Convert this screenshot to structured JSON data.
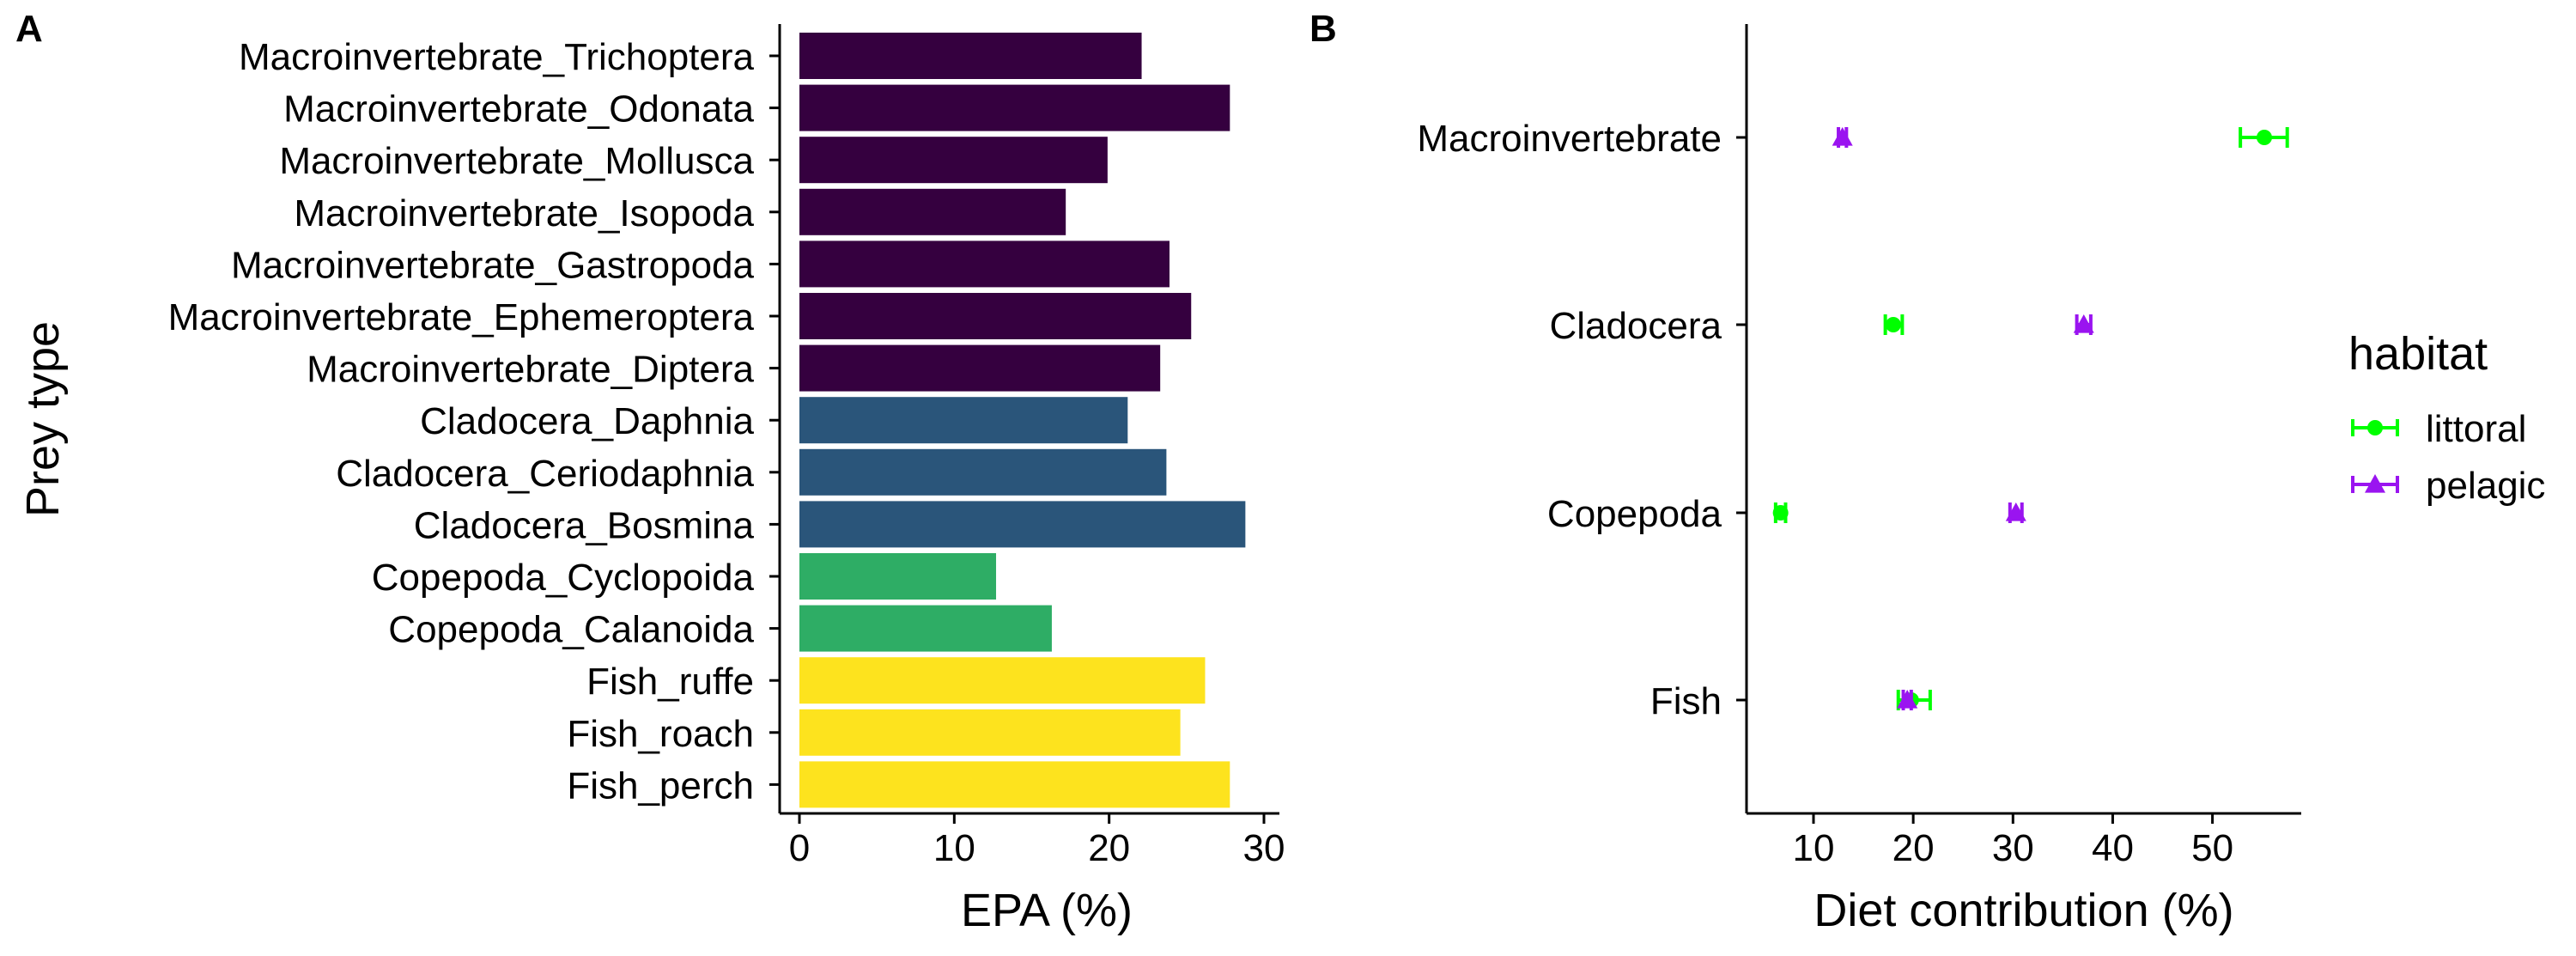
{
  "chart_data": [
    {
      "panel_label": "A",
      "type": "bar",
      "orientation": "horizontal",
      "xlabel": "EPA (%)",
      "ylabel": "Prey type",
      "xlim": [
        0,
        30
      ],
      "xticks": [
        0,
        10,
        20,
        30
      ],
      "categories": [
        "Macroinvertebrate_Trichoptera",
        "Macroinvertebrate_Odonata",
        "Macroinvertebrate_Mollusca",
        "Macroinvertebrate_Isopoda",
        "Macroinvertebrate_Gastropoda",
        "Macroinvertebrate_Ephemeroptera",
        "Macroinvertebrate_Diptera",
        "Cladocera_Daphnia",
        "Cladocera_Ceriodaphnia",
        "Cladocera_Bosmina",
        "Copepoda_Cyclopoida",
        "Copepoda_Calanoida",
        "Fish_ruffe",
        "Fish_roach",
        "Fish_perch"
      ],
      "values": [
        22.1,
        27.8,
        19.9,
        17.2,
        23.9,
        25.3,
        23.3,
        21.2,
        23.7,
        28.8,
        12.7,
        16.3,
        26.2,
        24.6,
        27.8
      ],
      "groups": [
        "Macroinvertebrate",
        "Macroinvertebrate",
        "Macroinvertebrate",
        "Macroinvertebrate",
        "Macroinvertebrate",
        "Macroinvertebrate",
        "Macroinvertebrate",
        "Cladocera",
        "Cladocera",
        "Cladocera",
        "Copepoda",
        "Copepoda",
        "Fish",
        "Fish",
        "Fish"
      ],
      "group_colors": {
        "Macroinvertebrate": "#35003f",
        "Cladocera": "#2a557a",
        "Copepoda": "#2ead65",
        "Fish": "#fde31e"
      },
      "grid": false
    },
    {
      "panel_label": "B",
      "type": "scatter",
      "subtype": "point-with-horizontal-errorbars",
      "xlabel": "Diet contribution (%)",
      "ylabel": "",
      "xlim": [
        4,
        60
      ],
      "xticks": [
        10,
        20,
        30,
        40,
        50
      ],
      "categories": [
        "Macroinvertebrate",
        "Cladocera",
        "Copepoda",
        "Fish"
      ],
      "legend": {
        "title": "habitat",
        "position": "right"
      },
      "series": [
        {
          "name": "littoral",
          "marker": "circle",
          "color": "#00ff00",
          "values": [
            55.2,
            18.0,
            6.7,
            19.8
          ],
          "err_low": [
            52.8,
            17.2,
            6.2,
            18.5
          ],
          "err_high": [
            57.5,
            18.9,
            7.2,
            21.7
          ]
        },
        {
          "name": "pelagic",
          "marker": "triangle",
          "color": "#9a14f0",
          "values": [
            12.9,
            37.1,
            30.3,
            19.4
          ],
          "err_low": [
            12.5,
            36.4,
            29.7,
            19.0
          ],
          "err_high": [
            13.3,
            37.8,
            30.9,
            19.8
          ]
        }
      ],
      "grid": false
    }
  ]
}
